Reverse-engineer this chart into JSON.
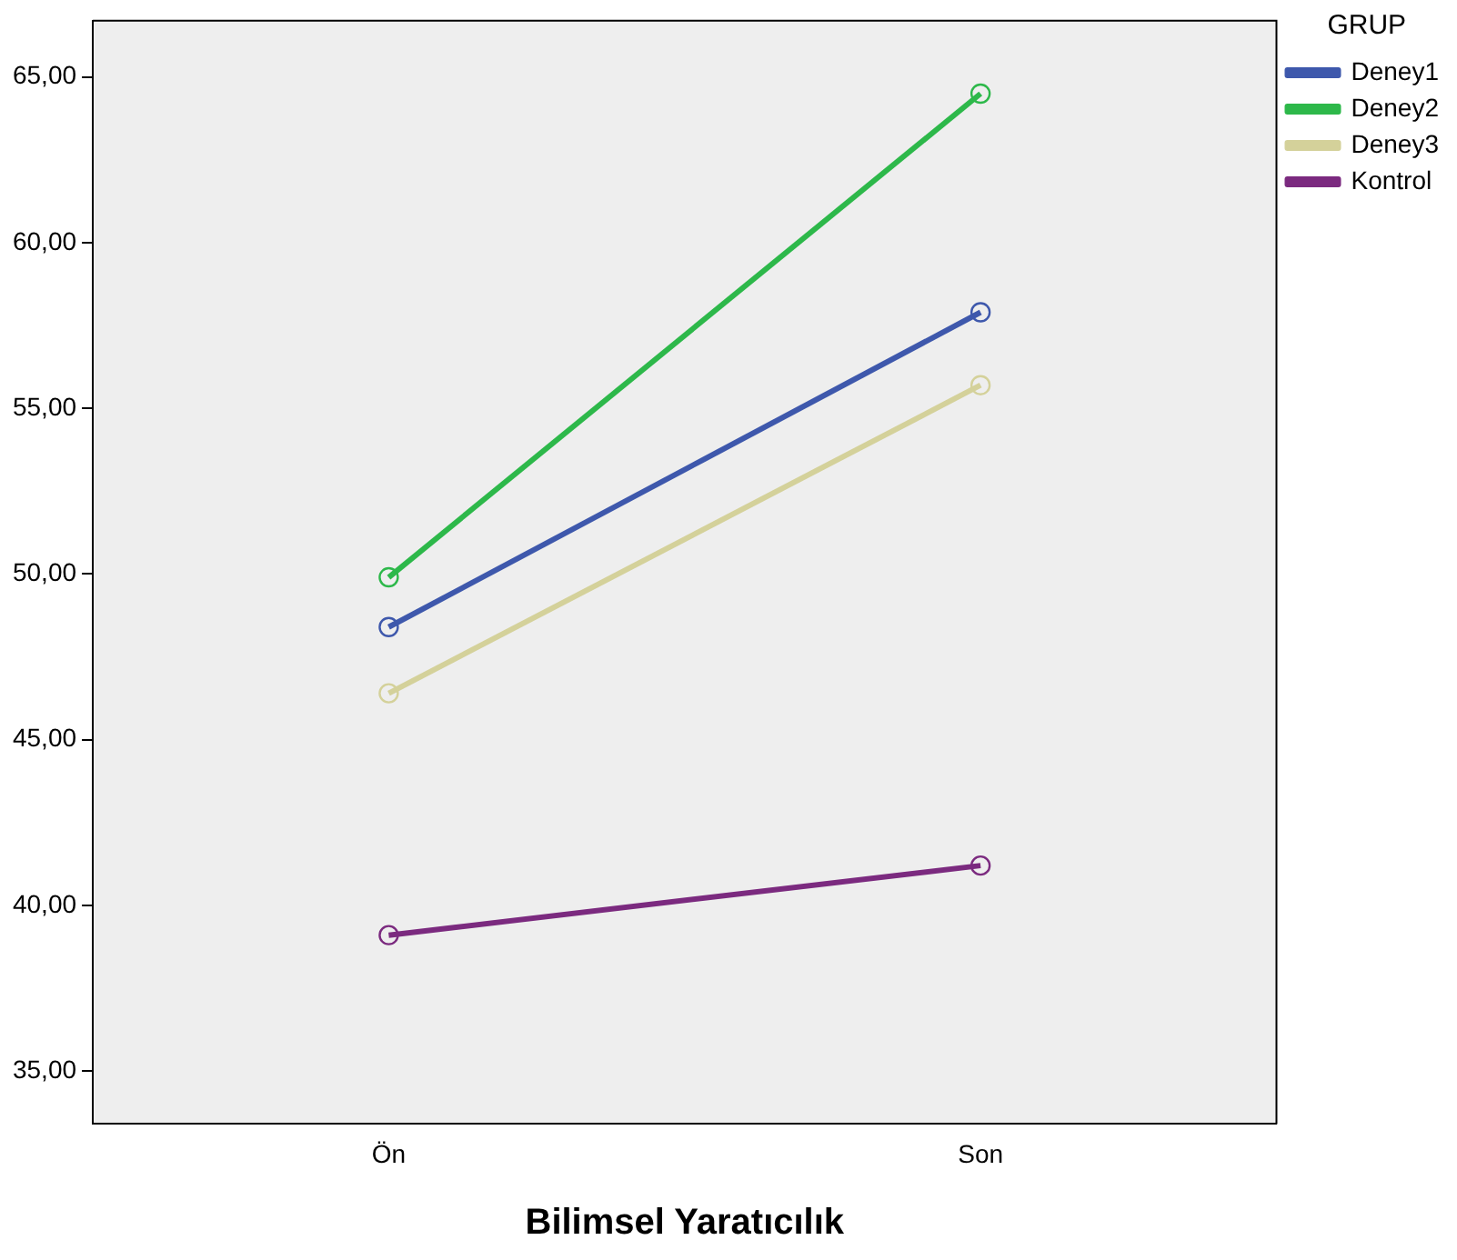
{
  "chart_data": {
    "type": "line",
    "xlabel": "Bilimsel Yaratıcılık",
    "legend_title": "GRUP",
    "categories": [
      "Ön",
      "Son"
    ],
    "series": [
      {
        "name": "Deney1",
        "color": "#3e58ac",
        "values": [
          48.4,
          57.9
        ]
      },
      {
        "name": "Deney2",
        "color": "#2db84a",
        "values": [
          49.9,
          64.5
        ]
      },
      {
        "name": "Deney3",
        "color": "#d4d19a",
        "values": [
          46.4,
          55.7
        ]
      },
      {
        "name": "Kontrol",
        "color": "#7b2a7f",
        "values": [
          39.1,
          41.2
        ]
      }
    ],
    "ylim": [
      33.4,
      66.7
    ],
    "yticks": [
      {
        "value": 35,
        "label": "35,00"
      },
      {
        "value": 40,
        "label": "40,00"
      },
      {
        "value": 45,
        "label": "45,00"
      },
      {
        "value": 50,
        "label": "50,00"
      },
      {
        "value": 55,
        "label": "55,00"
      },
      {
        "value": 60,
        "label": "60,00"
      },
      {
        "value": 65,
        "label": "65,00"
      }
    ],
    "grid": false,
    "legend": "top right",
    "marker": "circle",
    "line_style": "solid"
  }
}
